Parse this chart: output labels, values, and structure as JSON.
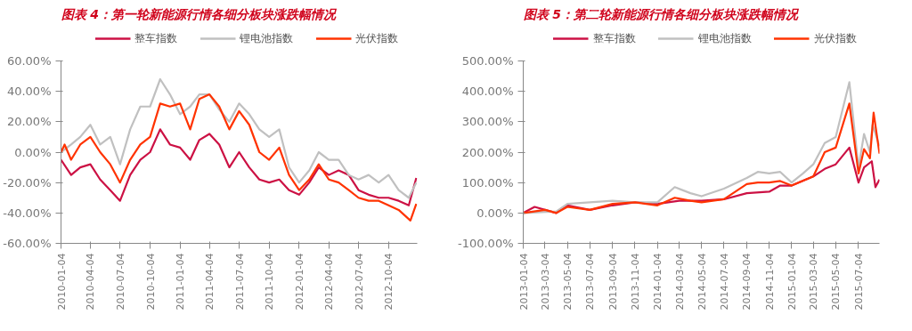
{
  "chart_data": [
    {
      "type": "line",
      "title": "图表 4：第一轮新能源行情各细分板块涨跌幅情况",
      "legend": "top",
      "grid": false,
      "line_style": "solid",
      "marker": "none",
      "xlim": [
        "2010-01-04",
        "2012-12-31"
      ],
      "xticks": [
        "2010-01-04",
        "2010-04-04",
        "2010-07-04",
        "2010-10-04",
        "2011-01-04",
        "2011-04-04",
        "2011-07-04",
        "2011-10-04",
        "2012-01-04",
        "2012-04-04",
        "2012-07-04",
        "2012-10-04"
      ],
      "ylim": [
        -60,
        60
      ],
      "yticks": [
        {
          "value": -60,
          "label": "-60.00%"
        },
        {
          "value": -40,
          "label": "-40.00%"
        },
        {
          "value": -20,
          "label": "-20.00%"
        },
        {
          "value": 0,
          "label": "0.00%"
        },
        {
          "value": 20,
          "label": "20.00%"
        },
        {
          "value": 40,
          "label": "40.00%"
        },
        {
          "value": 60,
          "label": "60.00%"
        }
      ],
      "series": [
        {
          "name": "整车指数",
          "color": "#cc1144",
          "x": [
            "2010-01-04",
            "2010-02-04",
            "2010-03-04",
            "2010-04-04",
            "2010-05-04",
            "2010-06-04",
            "2010-07-04",
            "2010-08-04",
            "2010-09-04",
            "2010-10-04",
            "2010-11-04",
            "2010-12-04",
            "2011-01-04",
            "2011-02-04",
            "2011-03-04",
            "2011-04-04",
            "2011-05-04",
            "2011-06-04",
            "2011-07-04",
            "2011-08-04",
            "2011-09-04",
            "2011-10-04",
            "2011-11-04",
            "2011-12-04",
            "2012-01-04",
            "2012-02-04",
            "2012-03-04",
            "2012-04-04",
            "2012-05-04",
            "2012-06-04",
            "2012-07-04",
            "2012-08-04",
            "2012-09-04",
            "2012-10-04",
            "2012-11-04",
            "2012-12-05",
            "2012-12-28"
          ],
          "values": [
            -5,
            -15,
            -10,
            -8,
            -18,
            -25,
            -32,
            -15,
            -5,
            0,
            15,
            5,
            3,
            -5,
            8,
            12,
            5,
            -10,
            0,
            -10,
            -18,
            -20,
            -18,
            -25,
            -28,
            -20,
            -10,
            -15,
            -12,
            -15,
            -25,
            -28,
            -30,
            -30,
            -32,
            -35,
            -17
          ]
        },
        {
          "name": "锂电池指数",
          "color": "#c0c0c0",
          "x": [
            "2010-01-04",
            "2010-02-04",
            "2010-03-04",
            "2010-04-04",
            "2010-05-04",
            "2010-06-04",
            "2010-07-04",
            "2010-08-04",
            "2010-09-04",
            "2010-10-04",
            "2010-11-04",
            "2010-12-04",
            "2011-01-04",
            "2011-02-04",
            "2011-03-04",
            "2011-04-04",
            "2011-05-04",
            "2011-06-04",
            "2011-07-04",
            "2011-08-04",
            "2011-09-04",
            "2011-10-04",
            "2011-11-04",
            "2011-12-04",
            "2012-01-04",
            "2012-02-04",
            "2012-03-04",
            "2012-04-04",
            "2012-05-04",
            "2012-06-04",
            "2012-07-04",
            "2012-08-04",
            "2012-09-04",
            "2012-10-04",
            "2012-11-04",
            "2012-12-05",
            "2012-12-28"
          ],
          "values": [
            0,
            5,
            10,
            18,
            5,
            10,
            -8,
            15,
            30,
            30,
            48,
            38,
            25,
            30,
            38,
            38,
            28,
            20,
            32,
            25,
            15,
            10,
            15,
            -10,
            -20,
            -12,
            0,
            -5,
            -5,
            -15,
            -18,
            -15,
            -20,
            -15,
            -25,
            -30,
            -20
          ]
        },
        {
          "name": "光伏指数",
          "color": "#ff3300",
          "x": [
            "2010-01-04",
            "2010-01-15",
            "2010-02-04",
            "2010-03-04",
            "2010-04-04",
            "2010-05-04",
            "2010-06-04",
            "2010-07-04",
            "2010-08-04",
            "2010-09-04",
            "2010-10-04",
            "2010-11-04",
            "2010-12-04",
            "2011-01-04",
            "2011-02-04",
            "2011-03-04",
            "2011-04-04",
            "2011-05-04",
            "2011-06-04",
            "2011-07-04",
            "2011-08-04",
            "2011-09-04",
            "2011-10-04",
            "2011-11-04",
            "2011-12-04",
            "2012-01-04",
            "2012-02-04",
            "2012-03-04",
            "2012-04-04",
            "2012-05-04",
            "2012-06-04",
            "2012-07-04",
            "2012-08-04",
            "2012-09-04",
            "2012-10-04",
            "2012-11-04",
            "2012-12-10",
            "2012-12-28"
          ],
          "values": [
            0,
            5,
            -5,
            5,
            10,
            0,
            -8,
            -20,
            -5,
            5,
            10,
            32,
            30,
            32,
            15,
            35,
            38,
            30,
            15,
            27,
            18,
            0,
            -5,
            3,
            -15,
            -25,
            -18,
            -8,
            -18,
            -20,
            -25,
            -30,
            -32,
            -32,
            -35,
            -38,
            -45,
            -34
          ]
        }
      ]
    },
    {
      "type": "line",
      "title": "图表 5：第二轮新能源行情各细分板块涨跌幅情况",
      "legend": "top",
      "grid": false,
      "line_style": "solid",
      "marker": "none",
      "xlim": [
        "2013-01-04",
        "2015-08-31"
      ],
      "xticks": [
        "2013-01-04",
        "2013-03-04",
        "2013-05-04",
        "2013-07-04",
        "2013-09-04",
        "2013-11-04",
        "2014-01-04",
        "2014-03-04",
        "2014-05-04",
        "2014-07-04",
        "2014-09-04",
        "2014-11-04",
        "2015-01-04",
        "2015-03-04",
        "2015-05-04",
        "2015-07-04"
      ],
      "ylim": [
        -100,
        500
      ],
      "yticks": [
        {
          "value": -100,
          "label": "-100.00%"
        },
        {
          "value": 0,
          "label": "0.00%"
        },
        {
          "value": 100,
          "label": "100.00%"
        },
        {
          "value": 200,
          "label": "200.00%"
        },
        {
          "value": 300,
          "label": "300.00%"
        },
        {
          "value": 400,
          "label": "400.00%"
        },
        {
          "value": 500,
          "label": "500.00%"
        }
      ],
      "series": [
        {
          "name": "整车指数",
          "color": "#cc1144",
          "x": [
            "2013-01-04",
            "2013-02-04",
            "2013-04-04",
            "2013-05-04",
            "2013-07-04",
            "2013-09-04",
            "2013-11-04",
            "2014-01-04",
            "2014-03-04",
            "2014-05-04",
            "2014-07-04",
            "2014-09-04",
            "2014-11-04",
            "2014-12-04",
            "2015-01-04",
            "2015-03-04",
            "2015-04-04",
            "2015-05-04",
            "2015-06-10",
            "2015-07-05",
            "2015-07-20",
            "2015-08-10",
            "2015-08-20",
            "2015-08-31"
          ],
          "values": [
            0,
            20,
            0,
            25,
            10,
            25,
            35,
            30,
            40,
            40,
            45,
            65,
            70,
            90,
            90,
            120,
            145,
            160,
            215,
            100,
            150,
            170,
            85,
            110
          ]
        },
        {
          "name": "锂电池指数",
          "color": "#c0c0c0",
          "x": [
            "2013-01-04",
            "2013-04-04",
            "2013-05-04",
            "2013-07-04",
            "2013-09-04",
            "2013-11-04",
            "2014-01-04",
            "2014-02-20",
            "2014-04-04",
            "2014-05-04",
            "2014-07-04",
            "2014-09-04",
            "2014-10-04",
            "2014-11-04",
            "2014-12-04",
            "2015-01-04",
            "2015-02-04",
            "2015-03-04",
            "2015-04-04",
            "2015-05-04",
            "2015-06-10",
            "2015-07-05",
            "2015-07-20",
            "2015-08-05",
            "2015-08-12",
            "2015-08-31"
          ],
          "values": [
            0,
            5,
            30,
            35,
            40,
            35,
            35,
            85,
            65,
            55,
            80,
            115,
            135,
            130,
            135,
            100,
            130,
            160,
            230,
            250,
            430,
            150,
            260,
            200,
            290,
            220
          ]
        },
        {
          "name": "光伏指数",
          "color": "#ff3300",
          "x": [
            "2013-01-04",
            "2013-03-04",
            "2013-04-04",
            "2013-05-04",
            "2013-07-04",
            "2013-09-04",
            "2013-11-04",
            "2014-01-04",
            "2014-02-20",
            "2014-04-04",
            "2014-05-04",
            "2014-07-04",
            "2014-09-04",
            "2014-10-04",
            "2014-11-04",
            "2014-12-04",
            "2015-01-04",
            "2015-03-04",
            "2015-04-04",
            "2015-05-04",
            "2015-06-10",
            "2015-07-05",
            "2015-07-20",
            "2015-08-05",
            "2015-08-15",
            "2015-08-31"
          ],
          "values": [
            0,
            10,
            0,
            20,
            10,
            30,
            35,
            25,
            50,
            40,
            35,
            45,
            95,
            100,
            100,
            105,
            90,
            120,
            200,
            215,
            360,
            130,
            210,
            180,
            330,
            195
          ]
        }
      ]
    }
  ]
}
